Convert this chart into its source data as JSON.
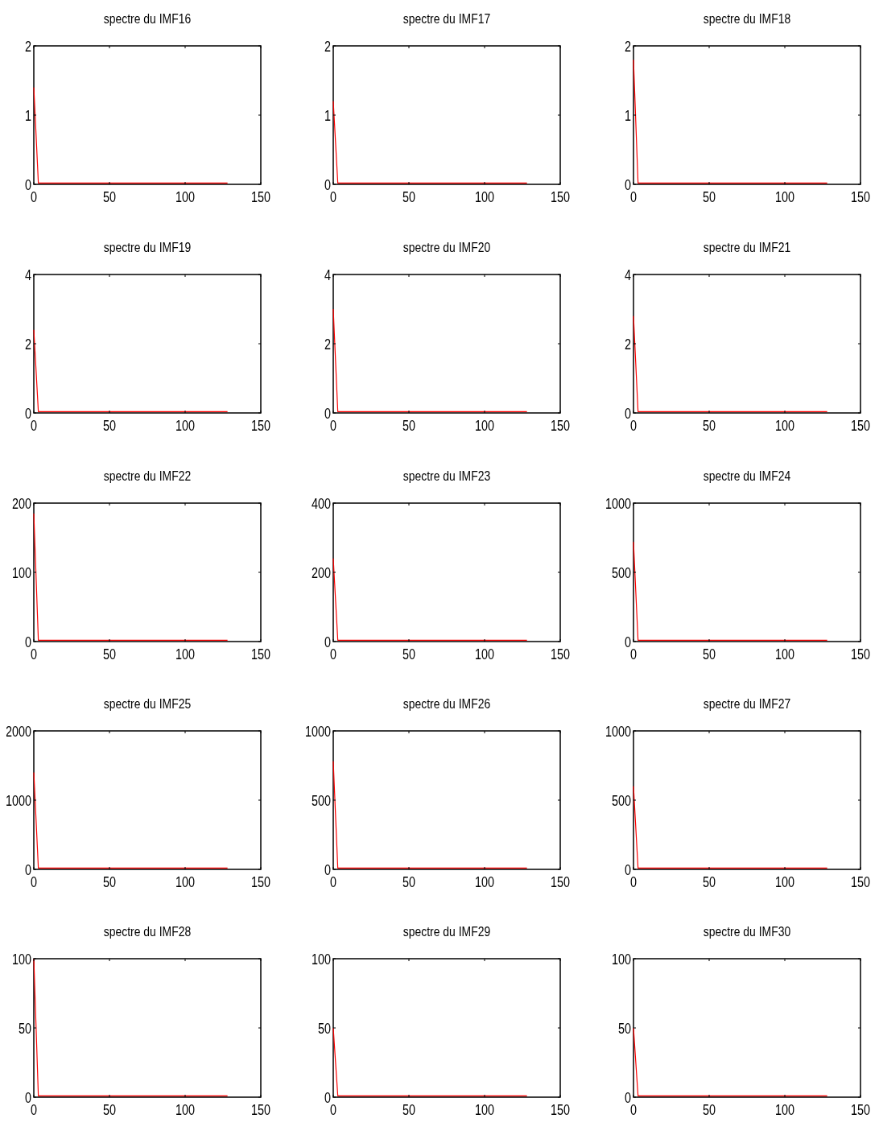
{
  "chart_data": [
    {
      "type": "line",
      "title": "spectre du IMF16",
      "x": [
        0,
        3,
        128
      ],
      "series": [
        {
          "color": "#ff0000",
          "values": [
            1.4,
            0.02,
            0.02
          ]
        }
      ],
      "xlim": [
        0,
        150
      ],
      "xticks": [
        0,
        50,
        100,
        150
      ],
      "ylim": [
        0,
        2
      ],
      "yticks": [
        0,
        1,
        2
      ]
    },
    {
      "type": "line",
      "title": "spectre du IMF17",
      "x": [
        0,
        3,
        128
      ],
      "series": [
        {
          "color": "#ff0000",
          "values": [
            1.2,
            0.02,
            0.02
          ]
        }
      ],
      "xlim": [
        0,
        150
      ],
      "xticks": [
        0,
        50,
        100,
        150
      ],
      "ylim": [
        0,
        2
      ],
      "yticks": [
        0,
        1,
        2
      ]
    },
    {
      "type": "line",
      "title": "spectre du IMF18",
      "x": [
        0,
        3,
        128
      ],
      "series": [
        {
          "color": "#ff0000",
          "values": [
            1.8,
            0.02,
            0.02
          ]
        }
      ],
      "xlim": [
        0,
        150
      ],
      "xticks": [
        0,
        50,
        100,
        150
      ],
      "ylim": [
        0,
        2
      ],
      "yticks": [
        0,
        1,
        2
      ]
    },
    {
      "type": "line",
      "title": "spectre du IMF19",
      "x": [
        0,
        3,
        128
      ],
      "series": [
        {
          "color": "#ff0000",
          "values": [
            2.4,
            0.04,
            0.04
          ]
        }
      ],
      "xlim": [
        0,
        150
      ],
      "xticks": [
        0,
        50,
        100,
        150
      ],
      "ylim": [
        0,
        4
      ],
      "yticks": [
        0,
        2,
        4
      ]
    },
    {
      "type": "line",
      "title": "spectre du IMF20",
      "x": [
        0,
        3,
        128
      ],
      "series": [
        {
          "color": "#ff0000",
          "values": [
            3.0,
            0.04,
            0.04
          ]
        }
      ],
      "xlim": [
        0,
        150
      ],
      "xticks": [
        0,
        50,
        100,
        150
      ],
      "ylim": [
        0,
        4
      ],
      "yticks": [
        0,
        2,
        4
      ]
    },
    {
      "type": "line",
      "title": "spectre du IMF21",
      "x": [
        0,
        3,
        128
      ],
      "series": [
        {
          "color": "#ff0000",
          "values": [
            2.8,
            0.04,
            0.04
          ]
        }
      ],
      "xlim": [
        0,
        150
      ],
      "xticks": [
        0,
        50,
        100,
        150
      ],
      "ylim": [
        0,
        4
      ],
      "yticks": [
        0,
        2,
        4
      ]
    },
    {
      "type": "line",
      "title": "spectre du IMF22",
      "x": [
        0,
        3,
        128
      ],
      "series": [
        {
          "color": "#ff0000",
          "values": [
            185,
            2,
            2
          ]
        }
      ],
      "xlim": [
        0,
        150
      ],
      "xticks": [
        0,
        50,
        100,
        150
      ],
      "ylim": [
        0,
        200
      ],
      "yticks": [
        0,
        100,
        200
      ]
    },
    {
      "type": "line",
      "title": "spectre du IMF23",
      "x": [
        0,
        3,
        128
      ],
      "series": [
        {
          "color": "#ff0000",
          "values": [
            240,
            4,
            4
          ]
        }
      ],
      "xlim": [
        0,
        150
      ],
      "xticks": [
        0,
        50,
        100,
        150
      ],
      "ylim": [
        0,
        400
      ],
      "yticks": [
        0,
        200,
        400
      ]
    },
    {
      "type": "line",
      "title": "spectre du IMF24",
      "x": [
        0,
        3,
        128
      ],
      "series": [
        {
          "color": "#ff0000",
          "values": [
            720,
            10,
            10
          ]
        }
      ],
      "xlim": [
        0,
        150
      ],
      "xticks": [
        0,
        50,
        100,
        150
      ],
      "ylim": [
        0,
        1000
      ],
      "yticks": [
        0,
        500,
        1000
      ]
    },
    {
      "type": "line",
      "title": "spectre du IMF25",
      "x": [
        0,
        3,
        128
      ],
      "series": [
        {
          "color": "#ff0000",
          "values": [
            1400,
            20,
            20
          ]
        }
      ],
      "xlim": [
        0,
        150
      ],
      "xticks": [
        0,
        50,
        100,
        150
      ],
      "ylim": [
        0,
        2000
      ],
      "yticks": [
        0,
        1000,
        2000
      ]
    },
    {
      "type": "line",
      "title": "spectre du IMF26",
      "x": [
        0,
        3,
        128
      ],
      "series": [
        {
          "color": "#ff0000",
          "values": [
            780,
            10,
            10
          ]
        }
      ],
      "xlim": [
        0,
        150
      ],
      "xticks": [
        0,
        50,
        100,
        150
      ],
      "ylim": [
        0,
        1000
      ],
      "yticks": [
        0,
        500,
        1000
      ]
    },
    {
      "type": "line",
      "title": "spectre du IMF27",
      "x": [
        0,
        3,
        128
      ],
      "series": [
        {
          "color": "#ff0000",
          "values": [
            600,
            10,
            10
          ]
        }
      ],
      "xlim": [
        0,
        150
      ],
      "xticks": [
        0,
        50,
        100,
        150
      ],
      "ylim": [
        0,
        1000
      ],
      "yticks": [
        0,
        500,
        1000
      ]
    },
    {
      "type": "line",
      "title": "spectre du IMF28",
      "x": [
        0,
        3,
        128
      ],
      "series": [
        {
          "color": "#ff0000",
          "values": [
            100,
            1,
            1
          ]
        }
      ],
      "xlim": [
        0,
        150
      ],
      "xticks": [
        0,
        50,
        100,
        150
      ],
      "ylim": [
        0,
        100
      ],
      "yticks": [
        0,
        50,
        100
      ]
    },
    {
      "type": "line",
      "title": "spectre du IMF29",
      "x": [
        0,
        3,
        128
      ],
      "series": [
        {
          "color": "#ff0000",
          "values": [
            50,
            1,
            1
          ]
        }
      ],
      "xlim": [
        0,
        150
      ],
      "xticks": [
        0,
        50,
        100,
        150
      ],
      "ylim": [
        0,
        100
      ],
      "yticks": [
        0,
        50,
        100
      ]
    },
    {
      "type": "line",
      "title": "spectre du IMF30",
      "x": [
        0,
        3,
        128
      ],
      "series": [
        {
          "color": "#ff0000",
          "values": [
            50,
            1,
            1
          ]
        }
      ],
      "xlim": [
        0,
        150
      ],
      "xticks": [
        0,
        50,
        100,
        150
      ],
      "ylim": [
        0,
        100
      ],
      "yticks": [
        0,
        50,
        100
      ]
    }
  ]
}
